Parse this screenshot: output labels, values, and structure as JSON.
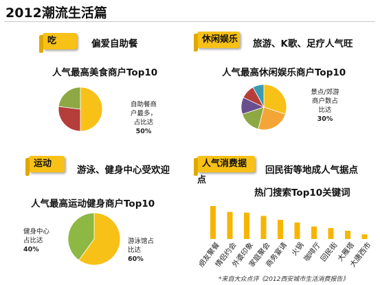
{
  "page": {
    "title": "2012潮流生活篇"
  },
  "sections": {
    "eat": {
      "tag": "吃",
      "headline": "偏爱自助餐",
      "chart_title": "人气最高美食商户Top10",
      "annotation_lines": [
        "自助餐商",
        "户最多，",
        "占比达"
      ],
      "annotation_pct": "50%"
    },
    "leisure": {
      "tag": "休闲娱乐",
      "headline": "旅游、K歌、足疗人气旺",
      "chart_title": "人气最高休闲娱乐商户Top10",
      "annotation_lines": [
        "景点/郊游",
        "商户数占",
        "比达"
      ],
      "annotation_pct": "30%"
    },
    "sport": {
      "tag": "运动",
      "headline": "游泳、健身中心受欢迎",
      "chart_title": "人气最高运动健身商户Top10",
      "left_annotation_lines": [
        "健身中心",
        "占比达"
      ],
      "left_annotation_pct": "40%",
      "right_annotation_lines": [
        "游泳馆占",
        "比达"
      ],
      "right_annotation_pct": "60%"
    },
    "spot": {
      "tag": "人气消费据点",
      "headline": "回民街等地成人气据点",
      "chart_title": "热门搜索Top10关键词"
    }
  },
  "footnote": "*来自大众点评《2012西安城市生活消费报告》",
  "colors": {
    "tag_yellow": "#f7c117",
    "pie_gold": "#f7c117",
    "pie_red": "#b53d3a",
    "pie_green": "#8ea944",
    "pie_purple": "#6a4f8f",
    "pie_teal": "#3a9bb5",
    "pie_orange": "#f3a637",
    "pie_lime": "#8db843"
  },
  "chart_data": [
    {
      "type": "pie",
      "name_hint": "eat",
      "slices": [
        {
          "value": 50,
          "color": "#f7c117"
        },
        {
          "value": 27,
          "color": "#b53d3a"
        },
        {
          "value": 23,
          "color": "#8ea944"
        }
      ]
    },
    {
      "type": "pie",
      "name_hint": "leisure",
      "slices": [
        {
          "value": 30,
          "color": "#f7c117"
        },
        {
          "value": 24,
          "color": "#f3a637"
        },
        {
          "value": 16,
          "color": "#8ea944"
        },
        {
          "value": 12,
          "color": "#6a4f8f"
        },
        {
          "value": 10,
          "color": "#b53d3a"
        },
        {
          "value": 8,
          "color": "#3a9bb5"
        }
      ]
    },
    {
      "type": "pie",
      "name_hint": "sport",
      "slices": [
        {
          "value": 60,
          "color": "#f7c117"
        },
        {
          "value": 40,
          "color": "#8db843"
        }
      ]
    },
    {
      "type": "bar",
      "name_hint": "spot",
      "categories": [
        "朋友聚餐",
        "情侣约会",
        "外婆印象",
        "家庭聚会",
        "商务宴请",
        "火锅",
        "咖啡厅",
        "回民街",
        "大雁塔",
        "大唐西市"
      ],
      "values": [
        100,
        82,
        80,
        70,
        58,
        50,
        38,
        33,
        25,
        14
      ],
      "ylim": [
        0,
        100
      ]
    }
  ]
}
